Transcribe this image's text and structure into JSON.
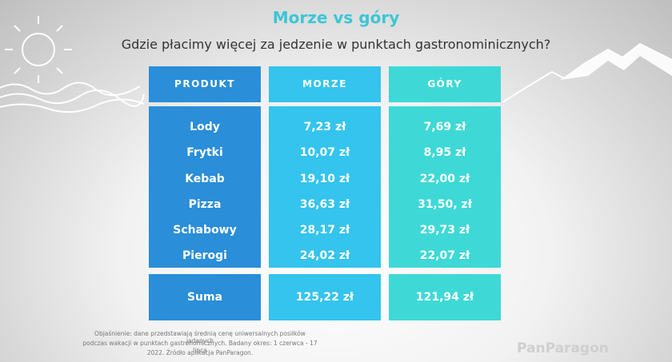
{
  "title": "Morze vs góry",
  "subtitle": "Gdzie płacimy więcej za jedzenie w punktach gastronominicznych?",
  "table": {
    "header": [
      "PRODUKT",
      "MORZE",
      "GÓRY"
    ],
    "rows": [
      [
        "Lody",
        "7,23 zł",
        "7,69 zł"
      ],
      [
        "Frytki",
        "10,07 zł",
        "8,95 zł"
      ],
      [
        "Kebab",
        "19,10 zł",
        "22,00 zł"
      ],
      [
        "Pizza",
        "36,63 zł",
        "31,50, zł"
      ],
      [
        "Schabowy",
        "28,17 zł",
        "29,73 zł"
      ],
      [
        "Pierogi",
        "24,02 zł",
        "22,07 zł"
      ]
    ],
    "total": [
      "Suma",
      "125,22 zł",
      "121,94 zł"
    ]
  },
  "footnote": [
    "Objaśnienie: dane przedstawiają średnią cenę uniwersalnych posiłków jadanych",
    "podczas wakacji w punktach gastronomicznych. Badany okres: 1 czerwca - 17 lipca",
    "2022. Źródło aplikacja PanParagon."
  ],
  "brand": "PanParagon"
}
